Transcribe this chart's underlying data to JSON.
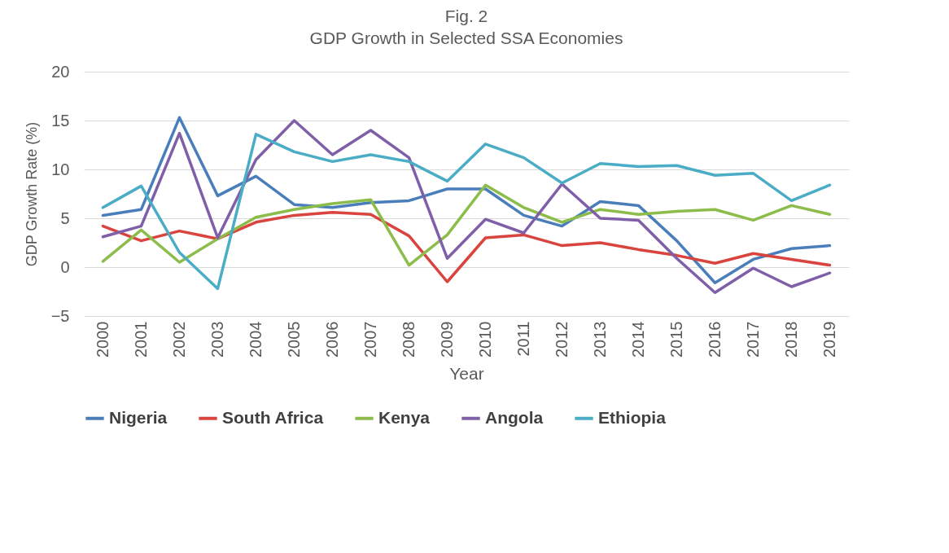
{
  "chart_data": {
    "type": "line",
    "title": "Fig. 2",
    "subtitle": "GDP Growth in Selected SSA Economies",
    "xlabel": "Year",
    "ylabel": "GDP Growth Rate (%)",
    "categories": [
      "2000",
      "2001",
      "2002",
      "2003",
      "2004",
      "2005",
      "2006",
      "2007",
      "2008",
      "2009",
      "2010",
      "2011",
      "2012",
      "2013",
      "2014",
      "2015",
      "2016",
      "2017",
      "2018",
      "2019"
    ],
    "series": [
      {
        "name": "Nigeria",
        "color": "#4a7ebb",
        "values": [
          5.3,
          5.9,
          15.3,
          7.3,
          9.3,
          6.4,
          6.1,
          6.6,
          6.8,
          8.0,
          8.0,
          5.3,
          4.2,
          6.7,
          6.3,
          2.7,
          -1.6,
          0.8,
          1.9,
          2.2
        ]
      },
      {
        "name": "South Africa",
        "color": "#d9443f",
        "values": [
          4.2,
          2.7,
          3.7,
          2.9,
          4.6,
          5.3,
          5.6,
          5.4,
          3.2,
          -1.5,
          3.0,
          3.3,
          2.2,
          2.5,
          1.8,
          1.2,
          0.4,
          1.4,
          0.8,
          0.2
        ]
      },
      {
        "name": "Kenya",
        "color": "#8cbd4a",
        "values": [
          0.6,
          3.8,
          0.5,
          2.9,
          5.1,
          5.9,
          6.5,
          6.9,
          0.2,
          3.3,
          8.4,
          6.1,
          4.6,
          5.9,
          5.4,
          5.7,
          5.9,
          4.8,
          6.3,
          5.4
        ]
      },
      {
        "name": "Angola",
        "color": "#7f5fa8",
        "values": [
          3.1,
          4.2,
          13.7,
          3.0,
          11.0,
          15.0,
          11.5,
          14.0,
          11.2,
          0.9,
          4.9,
          3.5,
          8.5,
          5.0,
          4.8,
          0.9,
          -2.6,
          -0.1,
          -2.0,
          -0.6
        ]
      },
      {
        "name": "Ethiopia",
        "color": "#4bacc6",
        "values": [
          6.1,
          8.3,
          1.5,
          -2.2,
          13.6,
          11.8,
          10.8,
          11.5,
          10.8,
          8.8,
          12.6,
          11.2,
          8.6,
          10.6,
          10.3,
          10.4,
          9.4,
          9.6,
          6.8,
          8.4
        ]
      }
    ],
    "ylim": [
      -5,
      20
    ],
    "yticks": [
      -5,
      0,
      5,
      10,
      15,
      20
    ],
    "grid": "y",
    "legend": "bottom",
    "marker": "none",
    "line_style": "solid"
  }
}
